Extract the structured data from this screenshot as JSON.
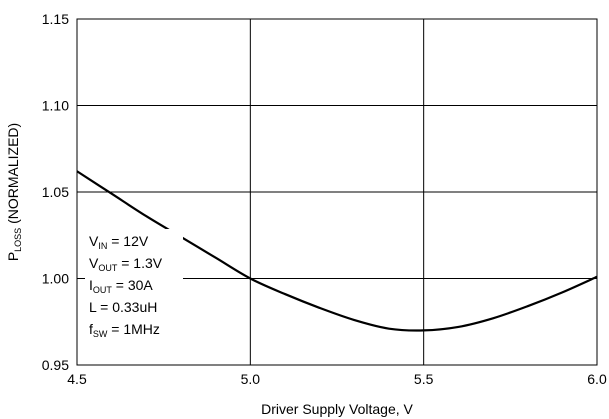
{
  "chart_data": {
    "type": "line",
    "title": "",
    "xlabel": "Driver Supply Voltage, V",
    "ylabel": {
      "main": "P",
      "sub": "LOSS",
      "rest": " (NORMALIZED)"
    },
    "xlim": [
      4.5,
      6.0
    ],
    "ylim": [
      0.95,
      1.15
    ],
    "xticks": [
      "4.5",
      "5.0",
      "5.5",
      "6.0"
    ],
    "yticks": [
      "0.95",
      "1.00",
      "1.05",
      "1.10",
      "1.15"
    ],
    "grid": true,
    "series": [
      {
        "x": [
          4.5,
          4.6,
          4.7,
          4.8,
          4.9,
          5.0,
          5.1,
          5.2,
          5.3,
          5.4,
          5.5,
          5.6,
          5.7,
          5.8,
          5.9,
          6.0
        ],
        "y": [
          1.062,
          1.049,
          1.036,
          1.024,
          1.012,
          1.0,
          0.991,
          0.983,
          0.976,
          0.971,
          0.97,
          0.972,
          0.977,
          0.984,
          0.992,
          1.001
        ]
      }
    ],
    "annotations": [
      {
        "main": "V",
        "sub": "IN",
        "rest": " = 12V"
      },
      {
        "main": "V",
        "sub": "OUT",
        "rest": " = 1.3V"
      },
      {
        "main": "I",
        "sub": "OUT",
        "rest": " = 30A"
      },
      {
        "main": "L = 0.33uH",
        "sub": "",
        "rest": ""
      },
      {
        "main": "f",
        "sub": "SW",
        "rest": " = 1MHz"
      }
    ]
  }
}
